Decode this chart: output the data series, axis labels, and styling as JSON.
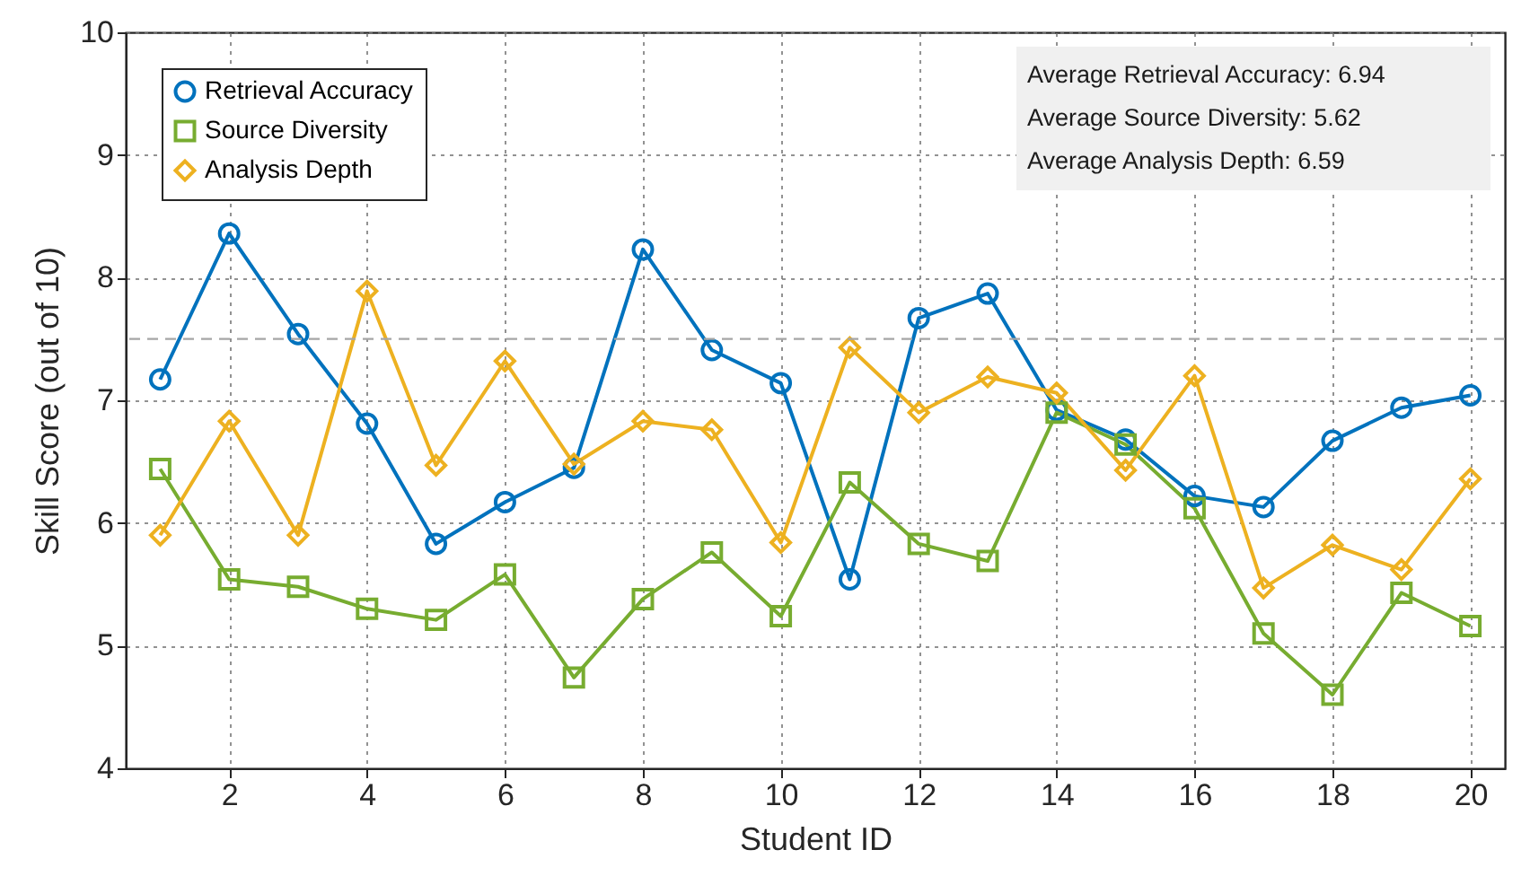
{
  "chart_data": {
    "type": "line",
    "xlabel": "Student ID",
    "ylabel": "Skill Score (out of 10)",
    "x": [
      1,
      2,
      3,
      4,
      5,
      6,
      7,
      8,
      9,
      10,
      11,
      12,
      13,
      14,
      15,
      16,
      17,
      18,
      19,
      20
    ],
    "series": [
      {
        "name": "Retrieval Accuracy",
        "color": "#0072bd",
        "marker": "circle",
        "values": [
          7.17,
          8.36,
          7.54,
          6.81,
          5.83,
          6.17,
          6.45,
          8.23,
          7.41,
          7.14,
          5.54,
          7.67,
          7.87,
          6.92,
          6.68,
          6.22,
          6.13,
          6.67,
          6.94,
          7.04
        ]
      },
      {
        "name": "Source Diversity",
        "color": "#77ac30",
        "marker": "square",
        "values": [
          6.44,
          5.54,
          5.48,
          5.3,
          5.21,
          5.58,
          4.74,
          5.38,
          5.76,
          5.24,
          6.33,
          5.83,
          5.69,
          6.9,
          6.64,
          6.12,
          5.1,
          4.6,
          5.43,
          5.16
        ]
      },
      {
        "name": "Analysis Depth",
        "color": "#edb120",
        "marker": "diamond",
        "values": [
          5.9,
          6.83,
          5.9,
          7.89,
          6.47,
          7.32,
          6.48,
          6.83,
          6.76,
          5.84,
          7.43,
          6.9,
          7.19,
          7.06,
          6.43,
          7.2,
          5.47,
          5.82,
          5.62,
          6.36
        ]
      }
    ],
    "xlim": [
      0.5,
      20.5
    ],
    "xticks": [
      2,
      4,
      6,
      8,
      10,
      12,
      14,
      16,
      18,
      20
    ],
    "ylim": [
      4,
      10
    ],
    "yticks": [
      4,
      5,
      6,
      7,
      8,
      9,
      10
    ],
    "ref_lines": [
      {
        "axis": "y",
        "value": 7.5,
        "color": "#a6a6a6",
        "line_style": "dashed"
      }
    ],
    "annotations": [
      "Average Retrieval Accuracy: 6.94",
      "Average Source Diversity: 5.62",
      "Average Analysis Depth: 6.59"
    ],
    "grid": true,
    "legend": "top left",
    "line_style": "solid"
  }
}
